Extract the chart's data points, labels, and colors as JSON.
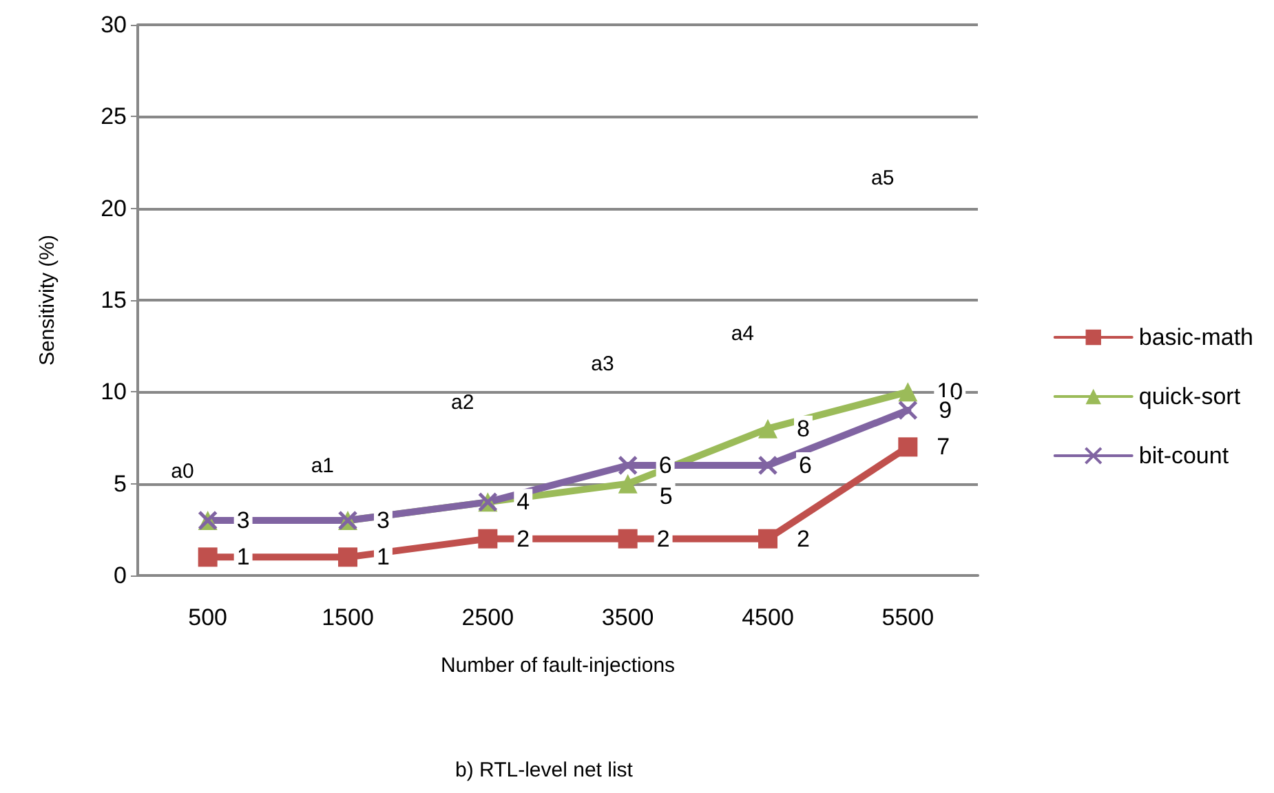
{
  "chart_data": {
    "type": "line",
    "title": "b) RTL-level net list",
    "xlabel": "Number of fault-injections",
    "ylabel": "Sensitivity (%)",
    "categories": [
      "500",
      "1500",
      "2500",
      "3500",
      "4500",
      "5500"
    ],
    "series": [
      {
        "name": "basic-math",
        "color": "#c0504d",
        "marker": "square",
        "values": [
          1,
          1,
          2,
          2,
          2,
          7
        ],
        "value_labels": [
          "1",
          "1",
          "2",
          "2",
          "2",
          "7"
        ]
      },
      {
        "name": "quick-sort",
        "color": "#9bbb59",
        "marker": "triangle",
        "values": [
          3,
          3,
          4,
          5,
          8,
          10
        ],
        "value_labels": [
          "3",
          "3",
          "4",
          "5",
          "8",
          "10"
        ]
      },
      {
        "name": "bit-count",
        "color": "#8064a2",
        "marker": "cross",
        "values": [
          3,
          3,
          4,
          6,
          6,
          9
        ],
        "value_labels": [
          null,
          null,
          null,
          "6",
          "6",
          "9"
        ]
      }
    ],
    "annotations": [
      "a0",
      "a1",
      "a2",
      "a3",
      "a4",
      "a5"
    ],
    "ylim": [
      0,
      30
    ],
    "yticks": [
      0,
      5,
      10,
      15,
      20,
      25,
      30
    ],
    "grid": "y",
    "legend": "right",
    "line_style": "solid"
  }
}
